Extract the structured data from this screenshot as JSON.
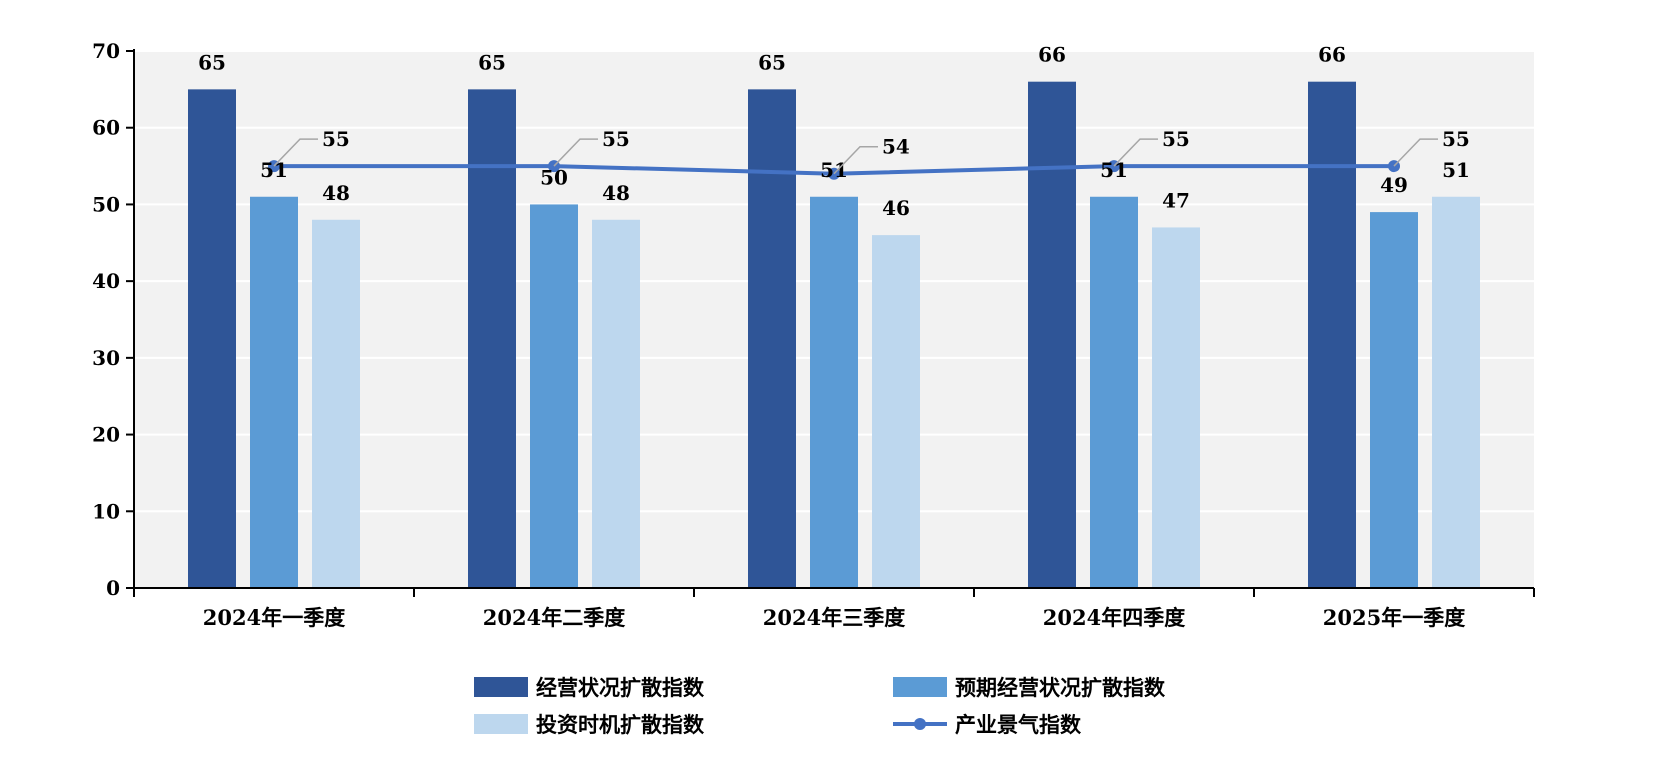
{
  "chart_data": {
    "type": "bar",
    "categories": [
      "2024年一季度",
      "2024年二季度",
      "2024年三季度",
      "2024年四季度",
      "2025年一季度"
    ],
    "series": [
      {
        "name": "经营状况扩散指数",
        "type": "bar",
        "color": "#2f5597",
        "values": [
          65,
          65,
          65,
          66,
          66
        ]
      },
      {
        "name": "预期经营状况扩散指数",
        "type": "bar",
        "color": "#5b9bd5",
        "values": [
          51,
          50,
          51,
          51,
          49
        ]
      },
      {
        "name": "投资时机扩散指数",
        "type": "bar",
        "color": "#bdd7ee",
        "values": [
          48,
          48,
          46,
          47,
          51
        ]
      },
      {
        "name": "产业景气指数",
        "type": "line",
        "color": "#4472c4",
        "values": [
          55,
          55,
          54,
          55,
          55
        ]
      }
    ],
    "ylim": [
      0,
      70
    ],
    "yticks": [
      0,
      10,
      20,
      30,
      40,
      50,
      60,
      70
    ],
    "grid": true,
    "legend_position": "bottom",
    "plot_background": "#f2f2f2"
  }
}
